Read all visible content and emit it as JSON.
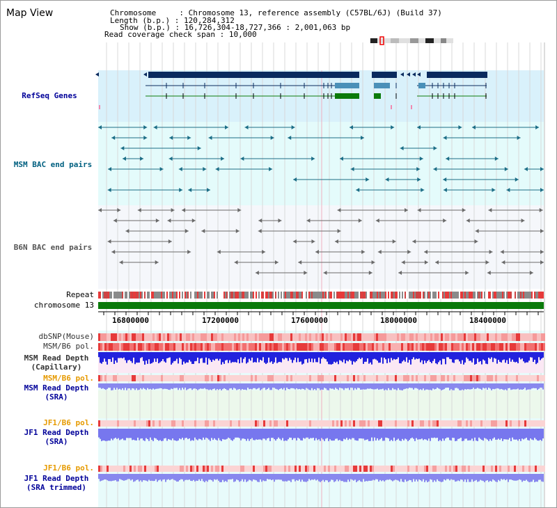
{
  "view_title": "Map View",
  "header": {
    "chromosome_label": "Chromosome",
    "chromosome_value": "Chromosome 13, reference assembly (C57BL/6J) (Build 37)",
    "length_label": "Length (b.p.)",
    "length_value": "120,284,312",
    "show_label": "Show (b.p.)",
    "show_value": "16,726,304-18,727,366 : 2,001,063 bp",
    "coverage_label": "Read coverage check span",
    "coverage_value": "10,000"
  },
  "tracks": {
    "refseq": "RefSeq Genes",
    "msm_bac": "MSM BAC end pairs",
    "b6n_bac": "B6N BAC end pairs",
    "repeat": "Repeat",
    "chromosome": "chromosome 13",
    "dbsnp": "dbSNP(Mouse)",
    "msm_b6_pol": "MSM/B6 pol.",
    "msm_depth_cap_1": "MSM Read Depth",
    "msm_depth_cap_2": "(Capillary)",
    "msm_b6_pol_2": "MSM/B6 pol.",
    "msm_depth_sra_1": "MSM Read Depth",
    "msm_depth_sra_2": "(SRA)",
    "jf1_b6_pol": "JF1/B6 pol.",
    "jf1_depth_sra_1": "JF1 Read Depth",
    "jf1_depth_sra_2": "(SRA)",
    "jf1_b6_pol_2": "JF1/B6 pol.",
    "jf1_depth_trim_1": "JF1 Read Depth",
    "jf1_depth_trim_2": "(SRA trimmed)"
  },
  "axis": {
    "ticks": [
      "16800000",
      "17200000",
      "17600000",
      "18000000",
      "18400000"
    ]
  },
  "colors": {
    "refseq_bg": "#d9f1fb",
    "msm_bg": "#e4fbfb",
    "b6n_bg": "#f5f7fb",
    "lower_bg": "#e8fbfb",
    "navy": "#0a2a5e",
    "teal": "#1b6d86",
    "gray": "#6a6a6a",
    "green": "#0a7a0a",
    "red": "#e63a3a",
    "blue": "#2a2ae6",
    "orange": "#e69a00",
    "label_blue": "#000099",
    "label_teal": "#006080",
    "label_gray": "#555555"
  }
}
